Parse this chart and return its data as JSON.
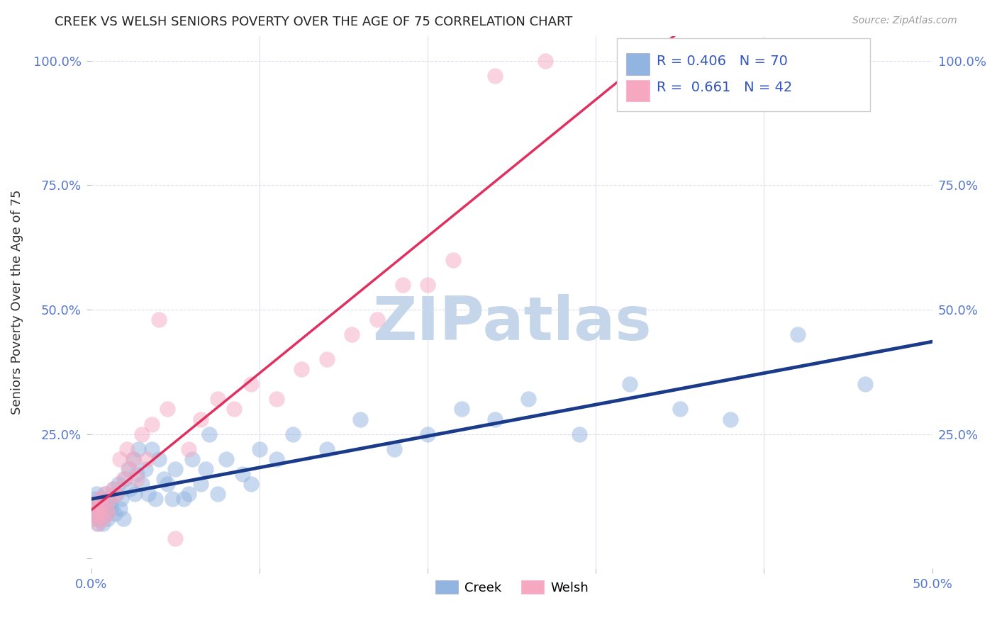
{
  "title": "CREEK VS WELSH SENIORS POVERTY OVER THE AGE OF 75 CORRELATION CHART",
  "source": "Source: ZipAtlas.com",
  "ylabel": "Seniors Poverty Over the Age of 75",
  "xlim": [
    0.0,
    0.5
  ],
  "ylim": [
    -0.02,
    1.05
  ],
  "creek_color": "#92B4E0",
  "welsh_color": "#F5A8C0",
  "creek_line_color": "#1A3A8A",
  "welsh_line_color": "#E03060",
  "creek_R": 0.406,
  "creek_N": 70,
  "welsh_R": 0.661,
  "welsh_N": 42,
  "watermark": "ZIPatlas",
  "watermark_color": "#C5D5EA",
  "background_color": "#FFFFFF",
  "grid_color": "#DDDDEE",
  "creek_data_x": [
    0.001,
    0.002,
    0.002,
    0.003,
    0.003,
    0.004,
    0.004,
    0.005,
    0.005,
    0.006,
    0.006,
    0.007,
    0.007,
    0.008,
    0.008,
    0.009,
    0.01,
    0.01,
    0.011,
    0.012,
    0.013,
    0.014,
    0.015,
    0.016,
    0.017,
    0.018,
    0.019,
    0.02,
    0.022,
    0.023,
    0.025,
    0.026,
    0.027,
    0.028,
    0.03,
    0.032,
    0.034,
    0.036,
    0.038,
    0.04,
    0.043,
    0.045,
    0.048,
    0.05,
    0.055,
    0.058,
    0.06,
    0.065,
    0.068,
    0.07,
    0.075,
    0.08,
    0.09,
    0.095,
    0.1,
    0.11,
    0.12,
    0.14,
    0.16,
    0.18,
    0.2,
    0.22,
    0.24,
    0.26,
    0.29,
    0.32,
    0.35,
    0.38,
    0.42,
    0.46
  ],
  "creek_data_y": [
    0.1,
    0.08,
    0.12,
    0.09,
    0.13,
    0.07,
    0.11,
    0.1,
    0.08,
    0.12,
    0.09,
    0.11,
    0.07,
    0.1,
    0.13,
    0.09,
    0.08,
    0.12,
    0.11,
    0.1,
    0.14,
    0.09,
    0.13,
    0.15,
    0.1,
    0.12,
    0.08,
    0.16,
    0.18,
    0.14,
    0.2,
    0.13,
    0.17,
    0.22,
    0.15,
    0.18,
    0.13,
    0.22,
    0.12,
    0.2,
    0.16,
    0.15,
    0.12,
    0.18,
    0.12,
    0.13,
    0.2,
    0.15,
    0.18,
    0.25,
    0.13,
    0.2,
    0.17,
    0.15,
    0.22,
    0.2,
    0.25,
    0.22,
    0.28,
    0.22,
    0.25,
    0.3,
    0.28,
    0.32,
    0.25,
    0.35,
    0.3,
    0.28,
    0.45,
    0.35
  ],
  "welsh_data_x": [
    0.001,
    0.002,
    0.003,
    0.003,
    0.004,
    0.005,
    0.005,
    0.006,
    0.007,
    0.008,
    0.009,
    0.01,
    0.011,
    0.013,
    0.015,
    0.017,
    0.019,
    0.021,
    0.023,
    0.025,
    0.027,
    0.03,
    0.033,
    0.036,
    0.04,
    0.045,
    0.05,
    0.058,
    0.065,
    0.075,
    0.085,
    0.095,
    0.11,
    0.125,
    0.14,
    0.155,
    0.17,
    0.185,
    0.2,
    0.215,
    0.24,
    0.27
  ],
  "welsh_data_y": [
    0.09,
    0.11,
    0.08,
    0.1,
    0.07,
    0.12,
    0.09,
    0.11,
    0.08,
    0.13,
    0.1,
    0.09,
    0.12,
    0.14,
    0.13,
    0.2,
    0.16,
    0.22,
    0.18,
    0.2,
    0.16,
    0.25,
    0.2,
    0.27,
    0.48,
    0.3,
    0.04,
    0.22,
    0.28,
    0.32,
    0.3,
    0.35,
    0.32,
    0.38,
    0.4,
    0.45,
    0.48,
    0.55,
    0.55,
    0.6,
    0.97,
    1.0
  ]
}
